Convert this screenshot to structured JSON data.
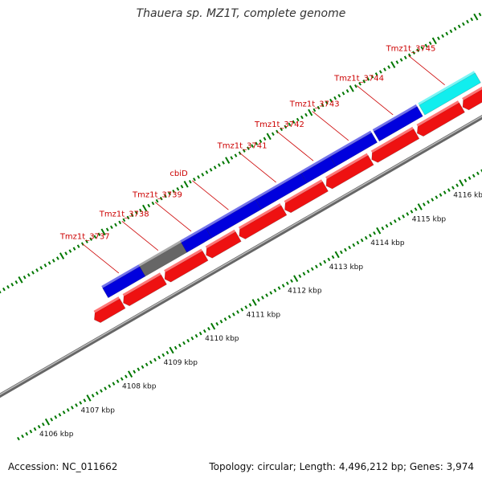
{
  "title": "Thauera sp. MZ1T, complete genome",
  "footer": {
    "accession": "Accession: NC_011662",
    "summary": "Topology: circular; Length: 4,496,212 bp; Genes: 3,974"
  },
  "colors": {
    "forward_gene": "#0000dd",
    "reverse_gene": "#ee1111",
    "grey_gene": "#666666",
    "cyan_gene": "#11eeee",
    "label_text": "#cc0000",
    "tick": "#007700",
    "backbone": "#999999"
  },
  "kbp_labels": [
    {
      "kbp": 4106,
      "label": "4106 kbp"
    },
    {
      "kbp": 4107,
      "label": "4107 kbp"
    },
    {
      "kbp": 4108,
      "label": "4108 kbp"
    },
    {
      "kbp": 4109,
      "label": "4109 kbp"
    },
    {
      "kbp": 4110,
      "label": "4110 kbp"
    },
    {
      "kbp": 4111,
      "label": "4111 kbp"
    },
    {
      "kbp": 4112,
      "label": "4112 kbp"
    },
    {
      "kbp": 4113,
      "label": "4113 kbp"
    },
    {
      "kbp": 4114,
      "label": "4114 kbp"
    },
    {
      "kbp": 4115,
      "label": "4115 kbp"
    },
    {
      "kbp": 4116,
      "label": "4116 kbp"
    }
  ],
  "forward_genes": [
    {
      "name": "Tmz1t_3737",
      "start": 4108.4,
      "end": 4109.3,
      "color": "forward"
    },
    {
      "name": "Tmz1t_3738",
      "start": 4109.3,
      "end": 4110.3,
      "color": "grey"
    },
    {
      "name": "Tmz1t_3739",
      "start": 4110.3,
      "end": 4110.9,
      "color": "forward"
    },
    {
      "name": "cbiD",
      "start": 4110.9,
      "end": 4112.1,
      "color": "forward"
    },
    {
      "name": "Tmz1t_3741",
      "start": 4112.1,
      "end": 4113.2,
      "color": "forward"
    },
    {
      "name": "Tmz1t_3742",
      "start": 4113.2,
      "end": 4113.9,
      "color": "forward"
    },
    {
      "name": "Tmz1t_3743",
      "start": 4113.9,
      "end": 4114.9,
      "color": "forward"
    },
    {
      "name": "Tmz1t_3744",
      "start": 4114.95,
      "end": 4116.0,
      "color": "forward"
    },
    {
      "name": "Tmz1t_3745",
      "start": 4116.05,
      "end": 4117.4,
      "color": "cyan"
    }
  ],
  "reverse_genes": [
    {
      "start": 4108.0,
      "end": 4108.6
    },
    {
      "start": 4108.7,
      "end": 4109.6
    },
    {
      "start": 4109.7,
      "end": 4110.6
    },
    {
      "start": 4110.7,
      "end": 4111.4
    },
    {
      "start": 4111.5,
      "end": 4112.5
    },
    {
      "start": 4112.6,
      "end": 4113.5
    },
    {
      "start": 4113.6,
      "end": 4114.6
    },
    {
      "start": 4114.7,
      "end": 4115.7
    },
    {
      "start": 4115.8,
      "end": 4116.8
    },
    {
      "start": 4116.9,
      "end": 4118.2
    }
  ]
}
